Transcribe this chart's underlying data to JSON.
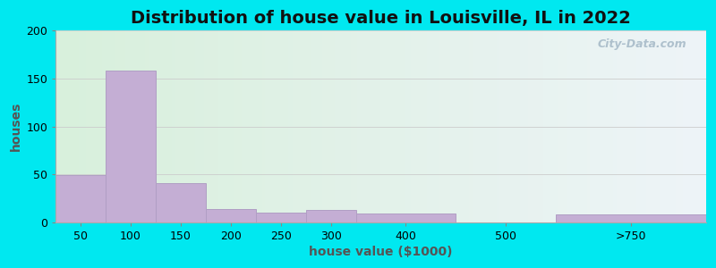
{
  "title": "Distribution of house value in Louisville, IL in 2022",
  "xlabel": "house value ($1000)",
  "ylabel": "houses",
  "bar_labels": [
    "50",
    "100",
    "150",
    "200",
    "250",
    "300",
    "400",
    "500",
    ">750"
  ],
  "bar_values": [
    49,
    158,
    41,
    14,
    10,
    13,
    9,
    0,
    8
  ],
  "bar_color": "#c4aed4",
  "bar_edgecolor": "#b09ec4",
  "ylim": [
    0,
    200
  ],
  "yticks": [
    0,
    50,
    100,
    150,
    200
  ],
  "bg_color_left": "#d8f0dc",
  "bg_color_right": "#eef4f8",
  "outer_bg": "#00e8f0",
  "title_fontsize": 14,
  "axis_label_fontsize": 10,
  "tick_fontsize": 9,
  "watermark_text": "City-Data.com",
  "bar_widths": [
    1,
    1,
    1,
    1,
    1,
    1,
    2,
    2,
    3
  ],
  "bar_lefts": [
    0,
    1,
    2,
    3,
    4,
    5,
    6,
    8,
    10
  ]
}
